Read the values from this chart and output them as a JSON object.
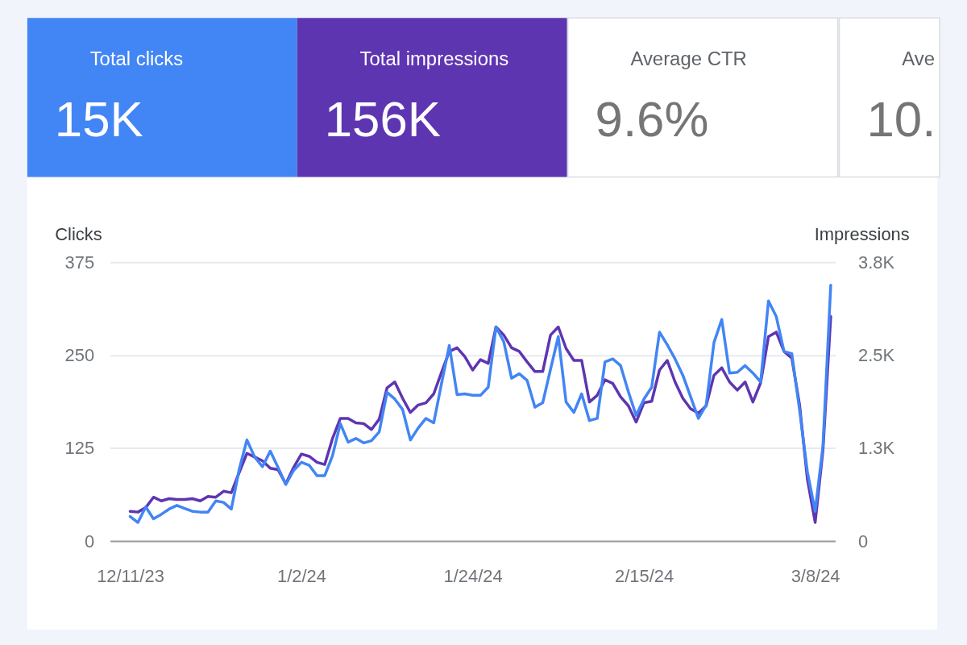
{
  "chart_data": [
    {
      "type": "other",
      "title": "Total clicks",
      "annotations": [
        "15K"
      ],
      "color": "#4285f4"
    },
    {
      "type": "other",
      "title": "Total impressions",
      "annotations": [
        "156K"
      ],
      "color": "#5e35b1"
    },
    {
      "type": "other",
      "title": "Average CTR",
      "annotations": [
        "9.6%"
      ]
    },
    {
      "type": "other",
      "title": "Ave",
      "annotations": [
        "10."
      ]
    },
    {
      "type": "line",
      "ylabel": "Clicks",
      "y2label": "Impressions",
      "x": [
        "2023-12-11",
        "2023-12-12",
        "2023-12-13",
        "2023-12-14",
        "2023-12-15",
        "2023-12-16",
        "2023-12-17",
        "2023-12-18",
        "2023-12-19",
        "2023-12-20",
        "2023-12-21",
        "2023-12-22",
        "2023-12-23",
        "2023-12-24",
        "2023-12-25",
        "2023-12-26",
        "2023-12-27",
        "2023-12-28",
        "2023-12-29",
        "2023-12-30",
        "2023-12-31",
        "2024-01-01",
        "2024-01-02",
        "2024-01-03",
        "2024-01-04",
        "2024-01-05",
        "2024-01-06",
        "2024-01-07",
        "2024-01-08",
        "2024-01-09",
        "2024-01-10",
        "2024-01-11",
        "2024-01-12",
        "2024-01-13",
        "2024-01-14",
        "2024-01-15",
        "2024-01-16",
        "2024-01-17",
        "2024-01-18",
        "2024-01-19",
        "2024-01-20",
        "2024-01-21",
        "2024-01-22",
        "2024-01-23",
        "2024-01-24",
        "2024-01-25",
        "2024-01-26",
        "2024-01-27",
        "2024-01-28",
        "2024-01-29",
        "2024-01-30",
        "2024-01-31",
        "2024-02-01",
        "2024-02-02",
        "2024-02-03",
        "2024-02-04",
        "2024-02-05",
        "2024-02-06",
        "2024-02-07",
        "2024-02-08",
        "2024-02-09",
        "2024-02-10",
        "2024-02-11",
        "2024-02-12",
        "2024-02-13",
        "2024-02-14",
        "2024-02-15",
        "2024-02-16",
        "2024-02-17",
        "2024-02-18",
        "2024-02-19",
        "2024-02-20",
        "2024-02-21",
        "2024-02-22",
        "2024-02-23",
        "2024-02-24",
        "2024-02-25",
        "2024-02-26",
        "2024-02-27",
        "2024-02-28",
        "2024-02-29",
        "2024-03-01",
        "2024-03-02",
        "2024-03-03",
        "2024-03-04",
        "2024-03-05",
        "2024-03-06",
        "2024-03-07",
        "2024-03-08",
        "2024-03-09",
        "2024-03-10"
      ],
      "xlim": [
        "2023-12-08T10:00",
        "2024-03-10T14:00"
      ],
      "xticks": [
        {
          "value": "2023-12-11",
          "label": "12/11/23"
        },
        {
          "value": "2024-01-02",
          "label": "1/2/24"
        },
        {
          "value": "2024-01-24",
          "label": "1/24/24"
        },
        {
          "value": "2024-02-15",
          "label": "2/15/24"
        },
        {
          "value": "2024-03-08",
          "label": "3/8/24"
        }
      ],
      "ylim": [
        0,
        375
      ],
      "yticks": [
        0,
        125,
        250,
        375
      ],
      "y2lim": [
        0,
        3750
      ],
      "y2ticks": [
        0,
        {
          "value": 1250,
          "label": "1.3K"
        },
        {
          "value": 2500,
          "label": "2.5K"
        },
        {
          "value": 3750,
          "label": "3.8K"
        }
      ],
      "grid": "y",
      "series": [
        {
          "color": "#4285f4",
          "values": [
            33,
            25,
            46,
            30,
            36,
            43,
            48,
            44,
            40,
            39,
            39,
            54,
            52,
            43,
            96,
            136,
            113,
            100,
            121,
            99,
            76,
            95,
            106,
            102,
            88,
            88,
            115,
            158,
            133,
            138,
            132,
            135,
            147,
            200,
            191,
            177,
            136,
            152,
            165,
            159,
            212,
            263,
            197,
            198,
            196,
            196,
            207,
            288,
            268,
            219,
            225,
            216,
            180,
            186,
            231,
            275,
            187,
            173,
            198,
            162,
            165,
            241,
            245,
            236,
            201,
            169,
            191,
            207,
            281,
            264,
            245,
            223,
            194,
            165,
            183,
            267,
            298,
            226,
            227,
            236,
            226,
            214,
            323,
            302,
            255,
            252,
            176,
            93,
            40,
            128,
            344
          ]
        },
        {
          "color": "#5e35b1",
          "axis": "y2",
          "values": [
            400,
            390,
            450,
            590,
            540,
            570,
            560,
            560,
            570,
            540,
            600,
            590,
            670,
            650,
            920,
            1180,
            1130,
            1080,
            980,
            960,
            770,
            990,
            1170,
            1140,
            1060,
            1030,
            1380,
            1650,
            1650,
            1590,
            1580,
            1500,
            1640,
            2060,
            2140,
            1920,
            1730,
            1830,
            1860,
            1980,
            2270,
            2550,
            2600,
            2480,
            2300,
            2440,
            2390,
            2880,
            2770,
            2600,
            2550,
            2410,
            2280,
            2280,
            2770,
            2880,
            2590,
            2430,
            2430,
            1870,
            1960,
            2170,
            2120,
            1940,
            1820,
            1600,
            1860,
            1880,
            2300,
            2430,
            2140,
            1920,
            1780,
            1720,
            1820,
            2230,
            2330,
            2140,
            2030,
            2140,
            1870,
            2130,
            2750,
            2810,
            2550,
            2460,
            1830,
            830,
            250,
            1220,
            3020
          ]
        }
      ]
    }
  ]
}
